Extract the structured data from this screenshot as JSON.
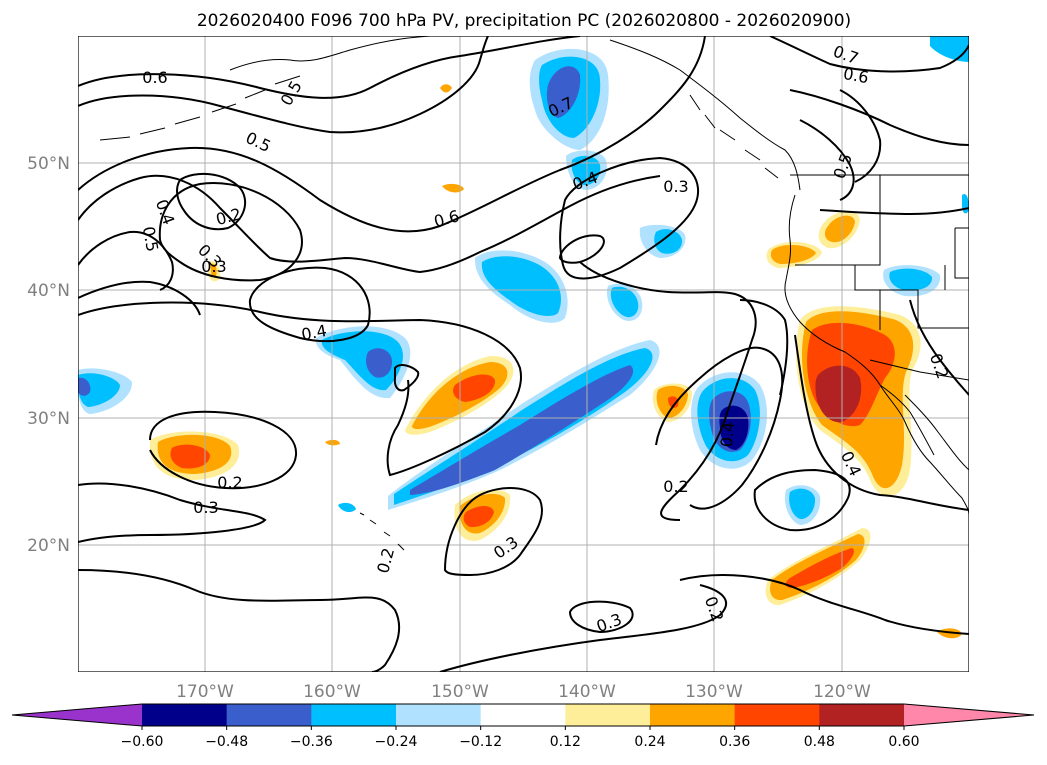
{
  "title": "2026020400 F096 700 hPa PV, precipitation PC (2026020800 - 2026020900)",
  "lon_labels": [
    "170°W",
    "160°W",
    "150°W",
    "140°W",
    "130°W",
    "120°W"
  ],
  "lat_labels": [
    "50°N",
    "40°N",
    "30°N",
    "20°N"
  ],
  "contour_labels": [
    "0.6",
    "0.7",
    "0.6",
    "0.5",
    "0.5",
    "0.5",
    "0.4",
    "0.2",
    "0.3",
    "0.6",
    "0.4",
    "0.3",
    "0.7",
    "0.4",
    "0.5",
    "0.4",
    "0.2",
    "0.3",
    "0.3",
    "0.2",
    "0.3",
    "0.2",
    "0.4",
    "0.2",
    "0.2",
    "0.3"
  ],
  "colorbar": {
    "tick_labels": [
      "−0.60",
      "−0.48",
      "−0.36",
      "−0.24",
      "−0.12",
      "0.12",
      "0.24",
      "0.36",
      "0.48",
      "0.60"
    ],
    "colors": [
      "#9933cc",
      "#00008b",
      "#3a5fcd",
      "#00bfff",
      "#b0e2ff",
      "#ffffff",
      "#ffee99",
      "#ffa500",
      "#ff4500",
      "#b22222",
      "#ff88aa"
    ]
  },
  "colors": {
    "neg_light": "#b0e2ff",
    "neg_mid": "#00bfff",
    "neg_strong": "#3a5fcd",
    "neg_extreme": "#00008b",
    "pos_light": "#ffee99",
    "pos_mid": "#ffa500",
    "pos_strong": "#ff4500",
    "pos_extreme": "#b22222"
  },
  "chart_data": {
    "type": "map",
    "title": "2026020400 F096 700 hPa PV, precipitation PC (2026020800 - 2026020900)",
    "projection": "PlateCarree",
    "lon_range": [
      -180,
      -110
    ],
    "lat_range": [
      10,
      60
    ],
    "field_shaded": "precipitation PC",
    "field_contoured": "700 hPa PV",
    "contour_levels": [
      0.2,
      0.3,
      0.4,
      0.5,
      0.6,
      0.7
    ],
    "color_levels": [
      -0.6,
      -0.48,
      -0.36,
      -0.24,
      -0.12,
      0.12,
      0.24,
      0.36,
      0.48,
      0.6
    ],
    "colorbar_extend": "both"
  }
}
